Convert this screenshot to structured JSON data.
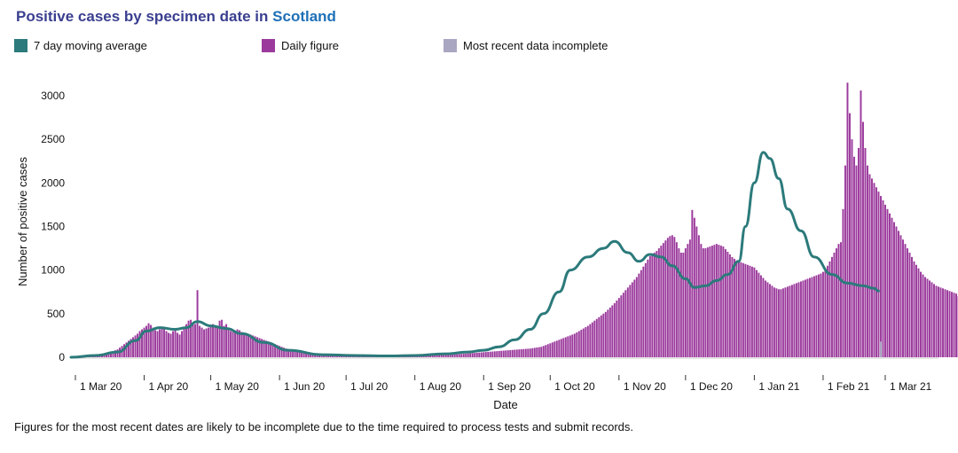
{
  "header": {
    "title_prefix": "Positive cases by specimen date in",
    "title_region": "Scotland"
  },
  "legend": [
    {
      "label": "7 day moving average",
      "color": "#2c7a7b"
    },
    {
      "label": "Daily figure",
      "color": "#9b3a9c"
    },
    {
      "label": "Most recent data incomplete",
      "color": "#a9a6c2"
    }
  ],
  "footnote": "Figures for the most recent dates are likely to be incomplete due to the time required to process tests and submit records.",
  "chart_data": {
    "type": "bar",
    "xlabel": "Date",
    "ylabel": "Number of positive cases",
    "ylim": [
      0,
      3250
    ],
    "yticks": [
      0,
      500,
      1000,
      1500,
      2000,
      2500,
      3000
    ],
    "grid": false,
    "legend_position": "top",
    "x_start_date": "2020-02-28",
    "x_end_date": "2021-03-25",
    "xtick_labels": [
      {
        "label": "1 Mar 20",
        "date": "2020-03-01"
      },
      {
        "label": "1 Apr 20",
        "date": "2020-04-01"
      },
      {
        "label": "1 May 20",
        "date": "2020-05-01"
      },
      {
        "label": "1 Jun 20",
        "date": "2020-06-01"
      },
      {
        "label": "1 Jul 20",
        "date": "2020-07-01"
      },
      {
        "label": "1 Aug 20",
        "date": "2020-08-01"
      },
      {
        "label": "1 Sep 20",
        "date": "2020-09-01"
      },
      {
        "label": "1 Oct 20",
        "date": "2020-10-01"
      },
      {
        "label": "1 Nov 20",
        "date": "2020-11-01"
      },
      {
        "label": "1 Dec 20",
        "date": "2020-12-01"
      },
      {
        "label": "1 Jan 21",
        "date": "2021-01-01"
      },
      {
        "label": "1 Feb 21",
        "date": "2021-02-01"
      },
      {
        "label": "1 Mar 21",
        "date": "2021-03-01"
      }
    ],
    "series": [
      {
        "name": "Daily figure",
        "color": "#9b3a9c",
        "start_date": "2020-03-01",
        "values": [
          3,
          5,
          6,
          8,
          10,
          12,
          14,
          18,
          22,
          26,
          30,
          35,
          40,
          45,
          50,
          55,
          60,
          70,
          80,
          90,
          110,
          130,
          150,
          170,
          190,
          210,
          230,
          250,
          270,
          300,
          320,
          340,
          360,
          390,
          370,
          340,
          310,
          300,
          320,
          340,
          330,
          300,
          280,
          270,
          300,
          320,
          280,
          260,
          300,
          340,
          380,
          420,
          430,
          400,
          380,
          770,
          360,
          340,
          320,
          330,
          340,
          350,
          380,
          360,
          340,
          420,
          430,
          360,
          380,
          320,
          300,
          290,
          300,
          320,
          310,
          290,
          280,
          260,
          250,
          260,
          250,
          240,
          230,
          220,
          210,
          200,
          190,
          180,
          170,
          160,
          150,
          140,
          130,
          120,
          110,
          100,
          95,
          90,
          85,
          80,
          75,
          70,
          65,
          60,
          55,
          50,
          48,
          46,
          44,
          42,
          40,
          38,
          37,
          36,
          35,
          34,
          33,
          32,
          31,
          30,
          30,
          29,
          29,
          28,
          28,
          27,
          27,
          26,
          26,
          25,
          25,
          24,
          24,
          24,
          24,
          24,
          23,
          23,
          23,
          23,
          22,
          22,
          22,
          22,
          22,
          22,
          22,
          22,
          22,
          22,
          22,
          22,
          22,
          22,
          22,
          23,
          23,
          23,
          24,
          24,
          25,
          25,
          26,
          26,
          27,
          28,
          29,
          30,
          31,
          32,
          33,
          34,
          35,
          36,
          38,
          40,
          42,
          44,
          46,
          48,
          50,
          52,
          54,
          56,
          58,
          60,
          62,
          64,
          66,
          68,
          70,
          72,
          74,
          76,
          78,
          80,
          82,
          84,
          86,
          88,
          90,
          92,
          94,
          96,
          98,
          100,
          104,
          108,
          112,
          116,
          120,
          130,
          140,
          150,
          160,
          170,
          180,
          190,
          200,
          210,
          220,
          230,
          240,
          250,
          260,
          270,
          285,
          300,
          315,
          330,
          345,
          360,
          380,
          400,
          420,
          440,
          460,
          480,
          500,
          520,
          545,
          570,
          595,
          620,
          650,
          680,
          710,
          740,
          770,
          800,
          830,
          860,
          890,
          920,
          960,
          1000,
          1040,
          1080,
          1120,
          1160,
          1180,
          1200,
          1220,
          1250,
          1280,
          1310,
          1340,
          1370,
          1390,
          1400,
          1380,
          1320,
          1250,
          1200,
          1200,
          1250,
          1300,
          1350,
          1690,
          1600,
          1500,
          1400,
          1300,
          1250,
          1250,
          1260,
          1270,
          1280,
          1290,
          1300,
          1290,
          1280,
          1270,
          1240,
          1210,
          1180,
          1150,
          1130,
          1110,
          1100,
          1090,
          1080,
          1070,
          1060,
          1050,
          1040,
          1030,
          1000,
          970,
          940,
          910,
          880,
          860,
          840,
          820,
          800,
          790,
          780,
          780,
          790,
          800,
          810,
          820,
          830,
          840,
          850,
          860,
          870,
          880,
          890,
          900,
          910,
          920,
          930,
          940,
          950,
          960,
          980,
          1000,
          1050,
          1100,
          1150,
          1200,
          1250,
          1300,
          1320,
          1700,
          2200,
          3150,
          2800,
          2500,
          2300,
          2200,
          2400,
          3060,
          2700,
          2400,
          2200,
          2100,
          2050,
          2000,
          1950,
          1900,
          1850,
          1800,
          1750,
          1700,
          1650,
          1600,
          1550,
          1500,
          1450,
          1400,
          1350,
          1300,
          1250,
          1200,
          1150,
          1100,
          1060,
          1020,
          980,
          950,
          920,
          900,
          880,
          860,
          840,
          820,
          810,
          800,
          790,
          780,
          770,
          760,
          750,
          740,
          730,
          700,
          690,
          670
        ],
        "incomplete_from_date": "2021-02-26"
      },
      {
        "name": "7 day moving average",
        "color": "#2c7a7b",
        "points": [
          {
            "date": "2020-02-28",
            "value": 0
          },
          {
            "date": "2020-03-10",
            "value": 20
          },
          {
            "date": "2020-03-20",
            "value": 60
          },
          {
            "date": "2020-03-28",
            "value": 190
          },
          {
            "date": "2020-04-02",
            "value": 300
          },
          {
            "date": "2020-04-08",
            "value": 340
          },
          {
            "date": "2020-04-15",
            "value": 320
          },
          {
            "date": "2020-04-20",
            "value": 340
          },
          {
            "date": "2020-04-25",
            "value": 410
          },
          {
            "date": "2020-05-01",
            "value": 360
          },
          {
            "date": "2020-05-08",
            "value": 330
          },
          {
            "date": "2020-05-15",
            "value": 270
          },
          {
            "date": "2020-05-25",
            "value": 170
          },
          {
            "date": "2020-06-05",
            "value": 80
          },
          {
            "date": "2020-06-20",
            "value": 30
          },
          {
            "date": "2020-07-05",
            "value": 20
          },
          {
            "date": "2020-07-20",
            "value": 15
          },
          {
            "date": "2020-08-01",
            "value": 20
          },
          {
            "date": "2020-08-15",
            "value": 40
          },
          {
            "date": "2020-08-25",
            "value": 60
          },
          {
            "date": "2020-09-01",
            "value": 80
          },
          {
            "date": "2020-09-08",
            "value": 120
          },
          {
            "date": "2020-09-15",
            "value": 200
          },
          {
            "date": "2020-09-22",
            "value": 320
          },
          {
            "date": "2020-09-28",
            "value": 500
          },
          {
            "date": "2020-10-05",
            "value": 750
          },
          {
            "date": "2020-10-10",
            "value": 1000
          },
          {
            "date": "2020-10-18",
            "value": 1150
          },
          {
            "date": "2020-10-25",
            "value": 1250
          },
          {
            "date": "2020-10-30",
            "value": 1330
          },
          {
            "date": "2020-11-05",
            "value": 1200
          },
          {
            "date": "2020-11-10",
            "value": 1100
          },
          {
            "date": "2020-11-15",
            "value": 1180
          },
          {
            "date": "2020-11-20",
            "value": 1150
          },
          {
            "date": "2020-11-25",
            "value": 1050
          },
          {
            "date": "2020-12-01",
            "value": 900
          },
          {
            "date": "2020-12-05",
            "value": 800
          },
          {
            "date": "2020-12-10",
            "value": 820
          },
          {
            "date": "2020-12-15",
            "value": 880
          },
          {
            "date": "2020-12-20",
            "value": 950
          },
          {
            "date": "2020-12-25",
            "value": 1100
          },
          {
            "date": "2020-12-28",
            "value": 1500
          },
          {
            "date": "2021-01-01",
            "value": 2000
          },
          {
            "date": "2021-01-05",
            "value": 2350
          },
          {
            "date": "2021-01-08",
            "value": 2280
          },
          {
            "date": "2021-01-12",
            "value": 2050
          },
          {
            "date": "2021-01-16",
            "value": 1700
          },
          {
            "date": "2021-01-22",
            "value": 1450
          },
          {
            "date": "2021-01-28",
            "value": 1150
          },
          {
            "date": "2021-02-05",
            "value": 950
          },
          {
            "date": "2021-02-12",
            "value": 850
          },
          {
            "date": "2021-02-19",
            "value": 820
          },
          {
            "date": "2021-02-24",
            "value": 790
          },
          {
            "date": "2021-02-26",
            "value": 760
          }
        ]
      },
      {
        "name": "Most recent data incomplete",
        "color": "#a9a6c2",
        "start_date": "2021-02-27",
        "values": [
          180
        ]
      }
    ]
  }
}
